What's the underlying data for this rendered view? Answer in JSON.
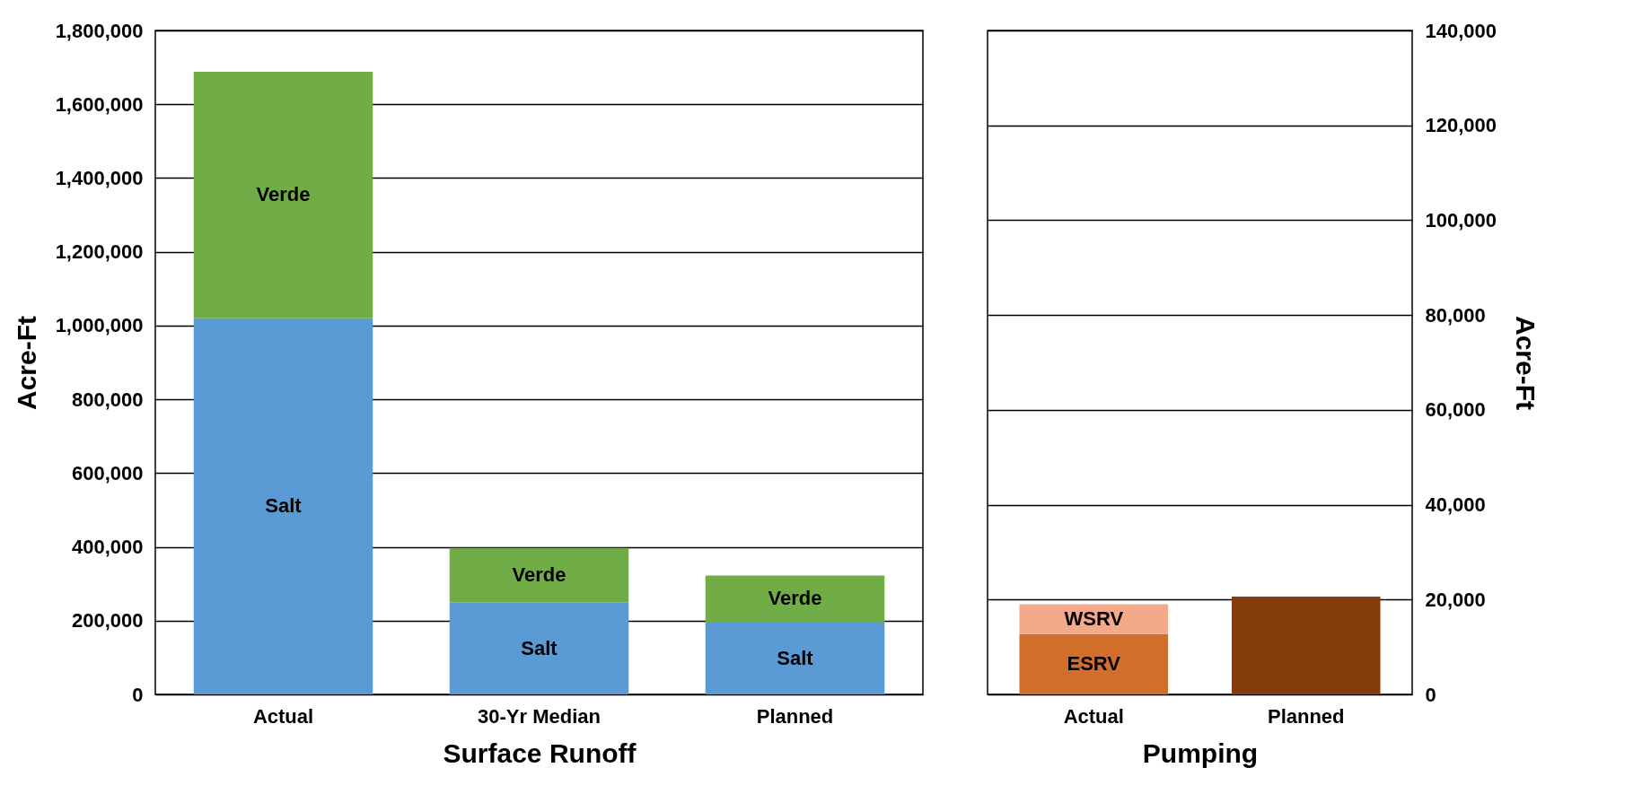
{
  "chart_data": [
    {
      "type": "bar",
      "stacked": true,
      "categories": [
        "Actual",
        "30-Yr Median",
        "Planned"
      ],
      "xlabel": "Surface Runoff",
      "ylabel": "Acre-Ft",
      "ylim": [
        0,
        1800000
      ],
      "yticks": [
        0,
        {
          "value": 200000,
          "label": "200,000"
        },
        {
          "value": 400000,
          "label": "400,000"
        },
        {
          "value": 600000,
          "label": "600,000"
        },
        {
          "value": 800000,
          "label": "800,000"
        },
        {
          "value": 1000000,
          "label": "1,000,000"
        },
        {
          "value": 1200000,
          "label": "1,200,000"
        },
        {
          "value": 1400000,
          "label": "1,400,000"
        },
        {
          "value": 1600000,
          "label": "1,600,000"
        },
        {
          "value": 1800000,
          "label": "1,800,000"
        }
      ],
      "grid": "y",
      "series": [
        {
          "name": "Salt",
          "color": "#5b9bd5",
          "values": [
            1020000,
            250000,
            197000
          ]
        },
        {
          "name": "Verde",
          "color": "#70ad47",
          "values": [
            668000,
            147000,
            125000
          ]
        }
      ]
    },
    {
      "type": "bar",
      "stacked": true,
      "categories": [
        "Actual",
        "Planned"
      ],
      "xlabel": "Pumping",
      "y2label": "Acre-Ft",
      "y2lim": [
        0,
        140000
      ],
      "y2ticks": [
        0,
        {
          "value": 20000,
          "label": "20,000"
        },
        {
          "value": 40000,
          "label": "40,000"
        },
        {
          "value": 60000,
          "label": "60,000"
        },
        {
          "value": 80000,
          "label": "80,000"
        },
        {
          "value": 100000,
          "label": "100,000"
        },
        {
          "value": 120000,
          "label": "120,000"
        },
        {
          "value": 140000,
          "label": "140,000"
        }
      ],
      "grid": "y",
      "series": [
        {
          "name": "ESRV",
          "color": "#d26e2b",
          "axis": "y2",
          "values": [
            12700,
            null
          ]
        },
        {
          "name": "WSRV",
          "color": "#f4a98a",
          "axis": "y2",
          "values": [
            6300,
            null
          ]
        },
        {
          "color": "#843c0c",
          "axis": "y2",
          "values": [
            null,
            20600
          ]
        }
      ]
    }
  ]
}
